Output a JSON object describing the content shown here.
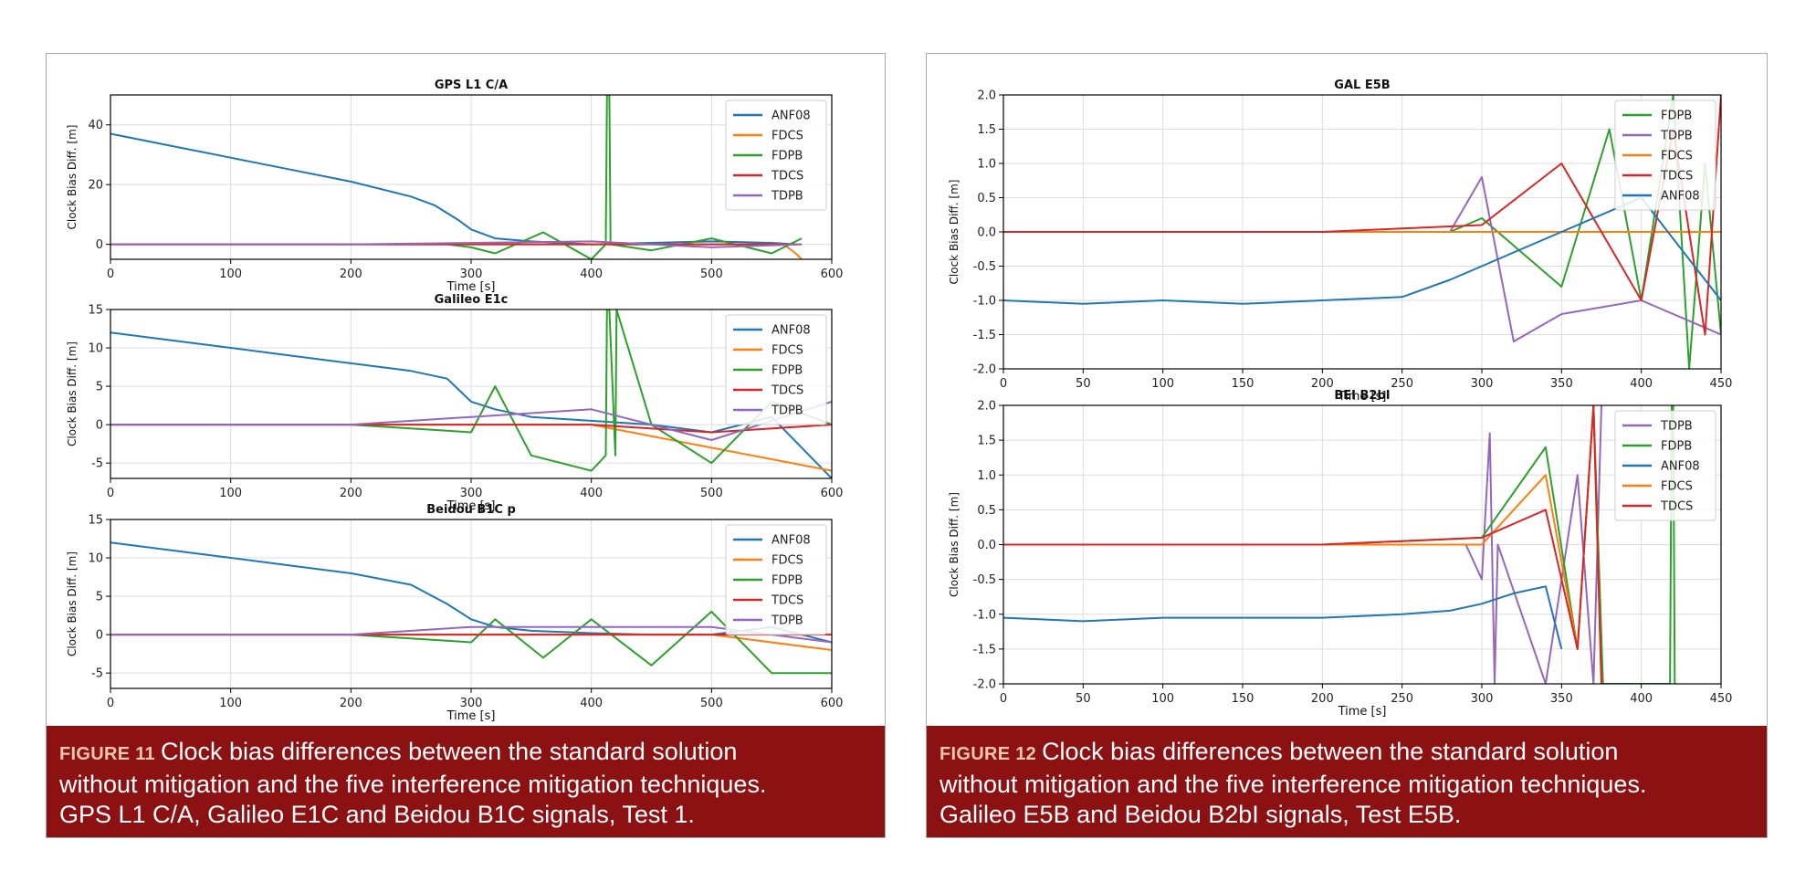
{
  "figures": [
    {
      "caption_label": "FIGURE 11",
      "caption_lines": [
        "Clock bias differences between the standard solution",
        "without mitigation and the five interference mitigation techniques.",
        "GPS L1 C/A, Galileo E1C and Beidou B1C signals, Test 1."
      ]
    },
    {
      "caption_label": "FIGURE 12",
      "caption_lines": [
        "Clock bias differences between the standard solution",
        "without mitigation and the five interference mitigation techniques.",
        "Galileo E5B and Beidou B2bI signals, Test E5B."
      ]
    }
  ],
  "colors": {
    "ANF08": "#1f77b4",
    "FDCS": "#ff7f0e",
    "FDPB": "#2ca02c",
    "TDCS": "#d62728",
    "TDPB": "#9467bd",
    "caption_bg": "#8b1113"
  },
  "chart_data": [
    {
      "type": "line",
      "title": "GPS L1 C/A",
      "xlabel": "Time [s]",
      "ylabel": "Clock Bias Diff. [m]",
      "xlim": [
        0,
        600
      ],
      "ylim": [
        -5,
        50
      ],
      "xticks": [
        0,
        100,
        200,
        300,
        400,
        500,
        600
      ],
      "yticks": [
        0,
        20,
        40
      ],
      "grid": true,
      "legend": "top-right",
      "legend_entries": [
        "ANF08",
        "FDCS",
        "FDPB",
        "TDCS",
        "TDPB"
      ],
      "series": [
        {
          "name": "ANF08",
          "x": [
            0,
            50,
            100,
            150,
            200,
            250,
            270,
            290,
            300,
            320,
            350,
            400,
            450,
            500,
            550,
            570
          ],
          "values": [
            37,
            33,
            29,
            25,
            21,
            16,
            13,
            8,
            5,
            2,
            1,
            0,
            0.5,
            1,
            0.5,
            0
          ]
        },
        {
          "name": "FDCS",
          "x": [
            0,
            100,
            200,
            300,
            400,
            500,
            560,
            570,
            575
          ],
          "values": [
            0,
            0,
            0,
            0,
            0,
            0,
            0,
            -3,
            -5
          ]
        },
        {
          "name": "FDPB",
          "x": [
            0,
            100,
            200,
            280,
            300,
            320,
            360,
            400,
            412,
            413,
            415,
            416,
            450,
            500,
            550,
            575
          ],
          "values": [
            0,
            0,
            0,
            0,
            -1,
            -3,
            4,
            -5,
            0,
            50,
            50,
            0,
            -2,
            2,
            -3,
            2
          ]
        },
        {
          "name": "TDCS",
          "x": [
            0,
            100,
            200,
            300,
            400,
            500,
            575
          ],
          "values": [
            0,
            0,
            0,
            0,
            0,
            0,
            0
          ]
        },
        {
          "name": "TDPB",
          "x": [
            0,
            100,
            200,
            300,
            400,
            500,
            575
          ],
          "values": [
            0,
            0,
            0,
            0.5,
            1,
            -1,
            0
          ]
        }
      ]
    },
    {
      "type": "line",
      "title": "Galileo E1c",
      "xlabel": "Time [s]",
      "ylabel": "Clock Bias Diff. [m]",
      "xlim": [
        0,
        600
      ],
      "ylim": [
        -7,
        15
      ],
      "xticks": [
        0,
        100,
        200,
        300,
        400,
        500,
        600
      ],
      "yticks": [
        -5,
        0,
        5,
        10,
        15
      ],
      "grid": true,
      "legend": "top-right",
      "legend_entries": [
        "ANF08",
        "FDCS",
        "FDPB",
        "TDCS",
        "TDPB"
      ],
      "series": [
        {
          "name": "ANF08",
          "x": [
            0,
            50,
            100,
            150,
            200,
            250,
            280,
            300,
            320,
            350,
            400,
            450,
            500,
            550,
            600
          ],
          "values": [
            12,
            11,
            10,
            9,
            8,
            7,
            6,
            3,
            2,
            1,
            0.5,
            0,
            -1,
            1,
            -7
          ]
        },
        {
          "name": "FDCS",
          "x": [
            0,
            100,
            200,
            300,
            400,
            500,
            600
          ],
          "values": [
            0,
            0,
            0,
            0,
            0,
            -3,
            -6
          ]
        },
        {
          "name": "FDPB",
          "x": [
            0,
            100,
            200,
            300,
            320,
            350,
            400,
            412,
            413,
            415,
            420,
            421,
            450,
            500,
            550,
            600
          ],
          "values": [
            0,
            0,
            0,
            -1,
            5,
            -4,
            -6,
            -4,
            15,
            15,
            -4,
            15,
            0,
            -5,
            3,
            0
          ]
        },
        {
          "name": "TDCS",
          "x": [
            0,
            100,
            200,
            300,
            400,
            500,
            600
          ],
          "values": [
            0,
            0,
            0,
            0,
            0,
            -1,
            0
          ]
        },
        {
          "name": "TDPB",
          "x": [
            0,
            100,
            200,
            300,
            400,
            500,
            600
          ],
          "values": [
            0,
            0,
            0,
            1,
            2,
            -2,
            3
          ]
        }
      ]
    },
    {
      "type": "line",
      "title": "Beidou B1C p",
      "xlabel": "Time [s]",
      "ylabel": "Clock Bias Diff. [m]",
      "xlim": [
        0,
        600
      ],
      "ylim": [
        -7,
        15
      ],
      "xticks": [
        0,
        100,
        200,
        300,
        400,
        500,
        600
      ],
      "yticks": [
        -5,
        0,
        5,
        10,
        15
      ],
      "grid": true,
      "legend": "top-right",
      "legend_entries": [
        "ANF08",
        "FDCS",
        "FDPB",
        "TDCS",
        "TDPB"
      ],
      "series": [
        {
          "name": "ANF08",
          "x": [
            0,
            50,
            100,
            150,
            200,
            250,
            280,
            300,
            320,
            350,
            400,
            450,
            500,
            550,
            600
          ],
          "values": [
            12,
            11,
            10,
            9,
            8,
            6.5,
            4,
            2,
            1,
            0.5,
            0.2,
            0,
            0,
            1,
            -1
          ]
        },
        {
          "name": "FDCS",
          "x": [
            0,
            100,
            200,
            300,
            400,
            500,
            600
          ],
          "values": [
            0,
            0,
            0,
            0,
            0,
            0,
            -2
          ]
        },
        {
          "name": "FDPB",
          "x": [
            0,
            100,
            200,
            300,
            320,
            360,
            400,
            450,
            500,
            550,
            600
          ],
          "values": [
            0,
            0,
            0,
            -1,
            2,
            -3,
            2,
            -4,
            3,
            -5,
            -5
          ]
        },
        {
          "name": "TDCS",
          "x": [
            0,
            100,
            200,
            300,
            400,
            500,
            600
          ],
          "values": [
            0,
            0,
            0,
            0,
            0,
            0,
            0
          ]
        },
        {
          "name": "TDPB",
          "x": [
            0,
            100,
            200,
            300,
            400,
            500,
            600
          ],
          "values": [
            0,
            0,
            0,
            1,
            1,
            1,
            -1
          ]
        }
      ]
    },
    {
      "type": "line",
      "title": "GAL E5B",
      "xlabel": "Time [s]",
      "ylabel": "Clock Bias Diff. [m]",
      "xlim": [
        0,
        450
      ],
      "ylim": [
        -2,
        2
      ],
      "xticks": [
        0,
        50,
        100,
        150,
        200,
        250,
        300,
        350,
        400,
        450
      ],
      "yticks": [
        -2.0,
        -1.5,
        -1.0,
        -0.5,
        0.0,
        0.5,
        1.0,
        1.5,
        2.0
      ],
      "grid": true,
      "legend": "top-right",
      "legend_entries": [
        "FDPB",
        "TDPB",
        "FDCS",
        "TDCS",
        "ANF08"
      ],
      "series": [
        {
          "name": "FDPB",
          "x": [
            0,
            100,
            200,
            280,
            300,
            350,
            380,
            400,
            420,
            430,
            440,
            450
          ],
          "values": [
            0,
            0,
            0,
            0,
            0.2,
            -0.8,
            1.5,
            -1,
            2,
            -2,
            1,
            -1.5
          ]
        },
        {
          "name": "TDPB",
          "x": [
            0,
            100,
            200,
            280,
            300,
            320,
            350,
            400,
            450
          ],
          "values": [
            0,
            0,
            0,
            0,
            0.8,
            -1.6,
            -1.2,
            -1,
            -1.5
          ]
        },
        {
          "name": "FDCS",
          "x": [
            0,
            100,
            200,
            300,
            400,
            450
          ],
          "values": [
            0,
            0,
            0,
            0,
            0,
            0
          ]
        },
        {
          "name": "TDCS",
          "x": [
            0,
            100,
            200,
            300,
            350,
            400,
            420,
            440,
            450
          ],
          "values": [
            0,
            0,
            0,
            0.1,
            1,
            -1,
            1.5,
            -1.5,
            2
          ]
        },
        {
          "name": "ANF08",
          "x": [
            0,
            50,
            100,
            150,
            200,
            250,
            280,
            300,
            350,
            400,
            450
          ],
          "values": [
            -1,
            -1.05,
            -1,
            -1.05,
            -1,
            -0.95,
            -0.7,
            -0.5,
            0,
            0.5,
            -1
          ]
        }
      ]
    },
    {
      "type": "line",
      "title": "BEI B2bI",
      "xlabel": "Time [s]",
      "ylabel": "Clock Bias Diff. [m]",
      "xlim": [
        0,
        450
      ],
      "ylim": [
        -2,
        2
      ],
      "xticks": [
        0,
        50,
        100,
        150,
        200,
        250,
        300,
        350,
        400,
        450
      ],
      "yticks": [
        -2.0,
        -1.5,
        -1.0,
        -0.5,
        0.0,
        0.5,
        1.0,
        1.5,
        2.0
      ],
      "grid": true,
      "legend": "top-right",
      "legend_entries": [
        "TDPB",
        "FDPB",
        "ANF08",
        "FDCS",
        "TDCS"
      ],
      "series": [
        {
          "name": "TDPB",
          "x": [
            0,
            100,
            200,
            290,
            300,
            305,
            308,
            310,
            340,
            360,
            370,
            375
          ],
          "values": [
            0,
            0,
            0,
            0,
            -0.5,
            1.6,
            -2,
            0,
            -2,
            1,
            -2,
            2
          ]
        },
        {
          "name": "FDPB",
          "x": [
            0,
            100,
            200,
            300,
            340,
            360,
            370,
            376,
            418,
            419,
            420,
            421
          ],
          "values": [
            0,
            0,
            0,
            0.1,
            1.4,
            -1.5,
            2,
            -2,
            -2,
            2,
            2,
            -2
          ]
        },
        {
          "name": "ANF08",
          "x": [
            0,
            50,
            100,
            150,
            200,
            250,
            280,
            300,
            320,
            340,
            350
          ],
          "values": [
            -1.05,
            -1.1,
            -1.05,
            -1.05,
            -1.05,
            -1.0,
            -0.95,
            -0.85,
            -0.7,
            -0.6,
            -1.5
          ]
        },
        {
          "name": "FDCS",
          "x": [
            0,
            100,
            200,
            300,
            340,
            360,
            370,
            375
          ],
          "values": [
            0,
            0,
            0,
            0,
            1,
            -1.5,
            2,
            -2
          ]
        },
        {
          "name": "TDCS",
          "x": [
            0,
            100,
            200,
            300,
            340,
            360,
            370,
            375
          ],
          "values": [
            0,
            0,
            0,
            0.1,
            0.5,
            -1.5,
            2,
            -2
          ]
        }
      ]
    }
  ]
}
